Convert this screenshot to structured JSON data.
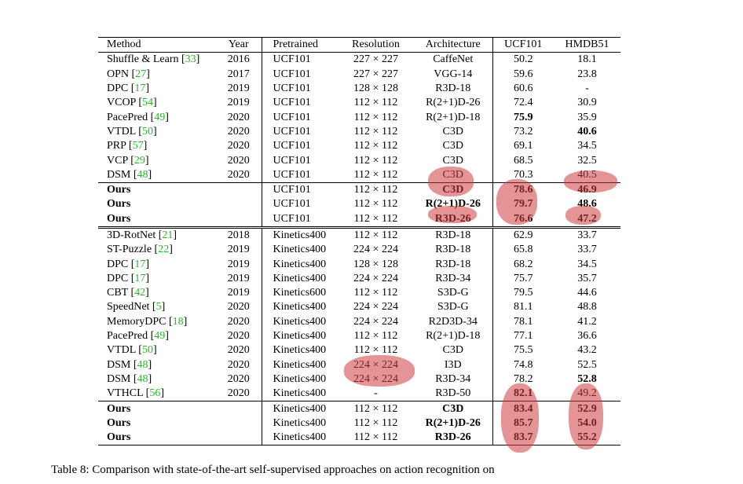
{
  "table": {
    "header": [
      "Method",
      "Year",
      "Pretrained",
      "Resolution",
      "Architecture",
      "UCF101",
      "HMDB51"
    ],
    "sections": [
      {
        "rows": [
          {
            "cells": [
              "Shuffle & Learn [33]",
              "2016",
              "UCF101",
              "227 × 227",
              "CaffeNet",
              "50.2",
              "18.1"
            ],
            "bold": []
          },
          {
            "cells": [
              "OPN [27]",
              "2017",
              "UCF101",
              "227 × 227",
              "VGG-14",
              "59.6",
              "23.8"
            ],
            "bold": []
          },
          {
            "cells": [
              "DPC [17]",
              "2019",
              "UCF101",
              "128 × 128",
              "R3D-18",
              "60.6",
              "-"
            ],
            "bold": []
          },
          {
            "cells": [
              "VCOP [54]",
              "2019",
              "UCF101",
              "112 × 112",
              "R(2+1)D-26",
              "72.4",
              "30.9"
            ],
            "bold": []
          },
          {
            "cells": [
              "PacePred [49]",
              "2020",
              "UCF101",
              "112 × 112",
              "R(2+1)D-18",
              "75.9",
              "35.9"
            ],
            "bold": [
              5
            ]
          },
          {
            "cells": [
              "VTDL [50]",
              "2020",
              "UCF101",
              "112 × 112",
              "C3D",
              "73.2",
              "40.6"
            ],
            "bold": [
              6
            ]
          },
          {
            "cells": [
              "PRP [57]",
              "2020",
              "UCF101",
              "112 × 112",
              "C3D",
              "69.1",
              "34.5"
            ],
            "bold": []
          },
          {
            "cells": [
              "VCP [29]",
              "2020",
              "UCF101",
              "112 × 112",
              "C3D",
              "68.5",
              "32.5"
            ],
            "bold": []
          },
          {
            "cells": [
              "DSM [48]",
              "2020",
              "UCF101",
              "112 × 112",
              "C3D",
              "70.3",
              "40.5"
            ],
            "bold": []
          },
          {
            "cells": [
              "Ours",
              "",
              "UCF101",
              "112 × 112",
              "C3D",
              "78.6",
              "46.9"
            ],
            "bold": [
              0,
              4,
              5,
              6
            ]
          },
          {
            "cells": [
              "Ours",
              "",
              "UCF101",
              "112 × 112",
              "R(2+1)D-26",
              "79.7",
              "48.6"
            ],
            "bold": [
              0,
              4,
              5,
              6
            ]
          },
          {
            "cells": [
              "Ours",
              "",
              "UCF101",
              "112 × 112",
              "R3D-26",
              "76.6",
              "47.2"
            ],
            "bold": [
              0,
              4,
              5,
              6
            ]
          }
        ]
      },
      {
        "rows": [
          {
            "cells": [
              "3D-RotNet [21]",
              "2018",
              "Kinetics400",
              "112 × 112",
              "R3D-18",
              "62.9",
              "33.7"
            ],
            "bold": []
          },
          {
            "cells": [
              "ST-Puzzle [22]",
              "2019",
              "Kinetics400",
              "224 × 224",
              "R3D-18",
              "65.8",
              "33.7"
            ],
            "bold": []
          },
          {
            "cells": [
              "DPC [17]",
              "2019",
              "Kinetics400",
              "128 × 128",
              "R3D-18",
              "68.2",
              "34.5"
            ],
            "bold": []
          },
          {
            "cells": [
              "DPC [17]",
              "2019",
              "Kinetics400",
              "224 × 224",
              "R3D-34",
              "75.7",
              "35.7"
            ],
            "bold": []
          },
          {
            "cells": [
              "CBT [42]",
              "2019",
              "Kinetics600",
              "112 × 112",
              "S3D-G",
              "79.5",
              "44.6"
            ],
            "bold": []
          },
          {
            "cells": [
              "SpeedNet [5]",
              "2020",
              "Kinetics400",
              "224 × 224",
              "S3D-G",
              "81.1",
              "48.8"
            ],
            "bold": []
          },
          {
            "cells": [
              "MemoryDPC [18]",
              "2020",
              "Kinetics400",
              "224 × 224",
              "R2D3D-34",
              "78.1",
              "41.2"
            ],
            "bold": []
          },
          {
            "cells": [
              "PacePred [49]",
              "2020",
              "Kinetics400",
              "112 × 112",
              "R(2+1)D-18",
              "77.1",
              "36.6"
            ],
            "bold": []
          },
          {
            "cells": [
              "VTDL [50]",
              "2020",
              "Kinetics400",
              "112 × 112",
              "C3D",
              "75.5",
              "43.2"
            ],
            "bold": []
          },
          {
            "cells": [
              "DSM [48]",
              "2020",
              "Kinetics400",
              "224 × 224",
              "I3D",
              "74.8",
              "52.5"
            ],
            "bold": []
          },
          {
            "cells": [
              "DSM [48]",
              "2020",
              "Kinetics400",
              "224 × 224",
              "R3D-34",
              "78.2",
              "52.8"
            ],
            "bold": [
              6
            ]
          },
          {
            "cells": [
              "VTHCL [56]",
              "2020",
              "Kinetics400",
              "-",
              "R3D-50",
              "82.1",
              "49.2"
            ],
            "bold": [
              5
            ]
          },
          {
            "cells": [
              "Ours",
              "",
              "Kinetics400",
              "112 × 112",
              "C3D",
              "83.4",
              "52.9"
            ],
            "bold": [
              0,
              4,
              5,
              6
            ]
          },
          {
            "cells": [
              "Ours",
              "",
              "Kinetics400",
              "112 × 112",
              "R(2+1)D-26",
              "85.7",
              "54.0"
            ],
            "bold": [
              0,
              4,
              5,
              6
            ]
          },
          {
            "cells": [
              "Ours",
              "",
              "Kinetics400",
              "112 × 112",
              "R3D-26",
              "83.7",
              "55.2"
            ],
            "bold": [
              0,
              4,
              5,
              6
            ]
          }
        ]
      }
    ],
    "caption": "Table 8: Comparison with state-of-the-art self-supervised approaches on action recognition on"
  }
}
